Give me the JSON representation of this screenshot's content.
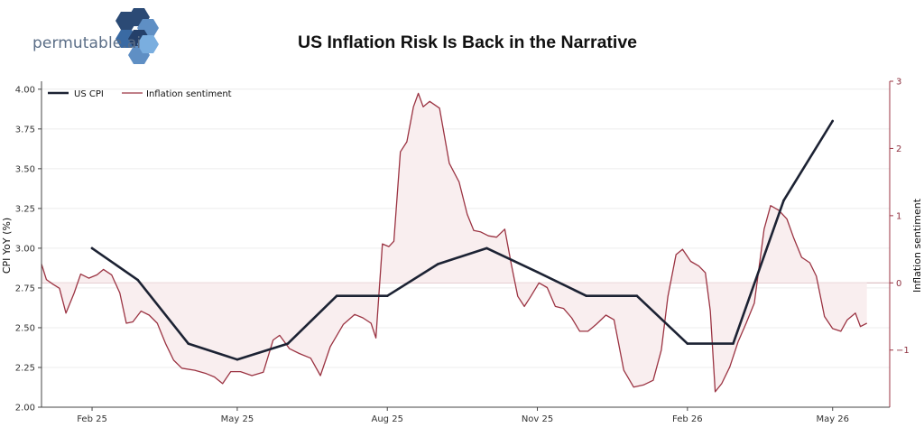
{
  "logo": {
    "text": "permutable.ai"
  },
  "chart_data": {
    "type": "line",
    "title": "US Inflation Risk Is Back in the Narrative",
    "ylabel": "CPI YoY (%)",
    "y2label": "Inflation sentiment",
    "ylim": [
      2.0,
      4.05
    ],
    "y2lim": [
      -1.85,
      3.0
    ],
    "xlim": [
      "2025-01-01",
      "2026-06-05"
    ],
    "yticks": [
      "2.00",
      "2.25",
      "2.50",
      "2.75",
      "3.00",
      "3.25",
      "3.50",
      "3.75",
      "4.00"
    ],
    "y2ticks": [
      "−1",
      "0",
      "1",
      "2",
      "3"
    ],
    "xticks": [
      {
        "date": "2025-02-01",
        "label": "Feb 25"
      },
      {
        "date": "2025-05-01",
        "label": "May 25"
      },
      {
        "date": "2025-08-01",
        "label": "Aug 25"
      },
      {
        "date": "2025-11-01",
        "label": "Nov 25"
      },
      {
        "date": "2026-02-01",
        "label": "Feb 26"
      },
      {
        "date": "2026-05-01",
        "label": "May 26"
      }
    ],
    "grid": true,
    "legend_position": "top-left",
    "series": [
      {
        "name": "US CPI",
        "axis": "left",
        "color": "#1c2233",
        "points": [
          [
            "2025-02-01",
            3.0
          ],
          [
            "2025-03-01",
            2.8
          ],
          [
            "2025-04-01",
            2.4
          ],
          [
            "2025-05-01",
            2.3
          ],
          [
            "2025-06-01",
            2.4
          ],
          [
            "2025-07-01",
            2.7
          ],
          [
            "2025-08-01",
            2.7
          ],
          [
            "2025-09-01",
            2.9
          ],
          [
            "2025-10-01",
            3.0
          ],
          [
            "2025-11-01",
            2.85
          ],
          [
            "2025-12-01",
            2.7
          ],
          [
            "2026-01-01",
            2.7
          ],
          [
            "2026-02-01",
            2.4
          ],
          [
            "2026-03-01",
            2.4
          ],
          [
            "2026-04-01",
            3.3
          ],
          [
            "2026-05-01",
            3.8
          ]
        ]
      },
      {
        "name": "Inflation sentiment",
        "axis": "right",
        "color": "#9b3342",
        "fill_color": "#f9eeef",
        "points": [
          [
            "2025-01-01",
            0.28
          ],
          [
            "2025-01-04",
            0.05
          ],
          [
            "2025-01-08",
            -0.02
          ],
          [
            "2025-01-12",
            -0.08
          ],
          [
            "2025-01-16",
            -0.45
          ],
          [
            "2025-01-21",
            -0.15
          ],
          [
            "2025-01-25",
            0.13
          ],
          [
            "2025-01-30",
            0.07
          ],
          [
            "2025-02-04",
            0.12
          ],
          [
            "2025-02-08",
            0.2
          ],
          [
            "2025-02-13",
            0.12
          ],
          [
            "2025-02-18",
            -0.15
          ],
          [
            "2025-02-22",
            -0.6
          ],
          [
            "2025-02-26",
            -0.58
          ],
          [
            "2025-03-03",
            -0.42
          ],
          [
            "2025-03-08",
            -0.48
          ],
          [
            "2025-03-13",
            -0.6
          ],
          [
            "2025-03-18",
            -0.9
          ],
          [
            "2025-03-23",
            -1.15
          ],
          [
            "2025-03-28",
            -1.27
          ],
          [
            "2025-04-05",
            -1.3
          ],
          [
            "2025-04-12",
            -1.35
          ],
          [
            "2025-04-17",
            -1.4
          ],
          [
            "2025-04-22",
            -1.5
          ],
          [
            "2025-04-27",
            -1.32
          ],
          [
            "2025-05-03",
            -1.32
          ],
          [
            "2025-05-10",
            -1.38
          ],
          [
            "2025-05-17",
            -1.33
          ],
          [
            "2025-05-23",
            -0.85
          ],
          [
            "2025-05-27",
            -0.78
          ],
          [
            "2025-06-02",
            -0.98
          ],
          [
            "2025-06-08",
            -1.05
          ],
          [
            "2025-06-15",
            -1.12
          ],
          [
            "2025-06-21",
            -1.38
          ],
          [
            "2025-06-27",
            -0.95
          ],
          [
            "2025-07-05",
            -0.62
          ],
          [
            "2025-07-12",
            -0.47
          ],
          [
            "2025-07-17",
            -0.52
          ],
          [
            "2025-07-22",
            -0.6
          ],
          [
            "2025-07-25",
            -0.82
          ],
          [
            "2025-07-29",
            0.58
          ],
          [
            "2025-08-02",
            0.54
          ],
          [
            "2025-08-05",
            0.62
          ],
          [
            "2025-08-09",
            1.95
          ],
          [
            "2025-08-13",
            2.1
          ],
          [
            "2025-08-17",
            2.62
          ],
          [
            "2025-08-20",
            2.82
          ],
          [
            "2025-08-23",
            2.62
          ],
          [
            "2025-08-27",
            2.7
          ],
          [
            "2025-09-02",
            2.6
          ],
          [
            "2025-09-08",
            1.78
          ],
          [
            "2025-09-14",
            1.5
          ],
          [
            "2025-09-19",
            1.02
          ],
          [
            "2025-09-23",
            0.78
          ],
          [
            "2025-09-27",
            0.76
          ],
          [
            "2025-10-02",
            0.7
          ],
          [
            "2025-10-07",
            0.68
          ],
          [
            "2025-10-12",
            0.8
          ],
          [
            "2025-10-16",
            0.28
          ],
          [
            "2025-10-20",
            -0.2
          ],
          [
            "2025-10-24",
            -0.35
          ],
          [
            "2025-10-28",
            -0.2
          ],
          [
            "2025-11-02",
            0.0
          ],
          [
            "2025-11-07",
            -0.07
          ],
          [
            "2025-11-12",
            -0.35
          ],
          [
            "2025-11-17",
            -0.38
          ],
          [
            "2025-11-22",
            -0.52
          ],
          [
            "2025-11-27",
            -0.72
          ],
          [
            "2025-12-02",
            -0.72
          ],
          [
            "2025-12-07",
            -0.62
          ],
          [
            "2025-12-13",
            -0.48
          ],
          [
            "2025-12-18",
            -0.55
          ],
          [
            "2025-12-24",
            -1.3
          ],
          [
            "2025-12-30",
            -1.55
          ],
          [
            "2026-01-05",
            -1.52
          ],
          [
            "2026-01-11",
            -1.45
          ],
          [
            "2026-01-16",
            -1.0
          ],
          [
            "2026-01-20",
            -0.2
          ],
          [
            "2026-01-25",
            0.42
          ],
          [
            "2026-01-29",
            0.5
          ],
          [
            "2026-02-03",
            0.32
          ],
          [
            "2026-02-08",
            0.25
          ],
          [
            "2026-02-12",
            0.15
          ],
          [
            "2026-02-15",
            -0.42
          ],
          [
            "2026-02-18",
            -1.62
          ],
          [
            "2026-02-22",
            -1.5
          ],
          [
            "2026-02-27",
            -1.25
          ],
          [
            "2026-03-04",
            -0.88
          ],
          [
            "2026-03-09",
            -0.6
          ],
          [
            "2026-03-14",
            -0.3
          ],
          [
            "2026-03-20",
            0.8
          ],
          [
            "2026-03-24",
            1.15
          ],
          [
            "2026-03-29",
            1.08
          ],
          [
            "2026-04-03",
            0.95
          ],
          [
            "2026-04-07",
            0.68
          ],
          [
            "2026-04-12",
            0.38
          ],
          [
            "2026-04-17",
            0.3
          ],
          [
            "2026-04-21",
            0.1
          ],
          [
            "2026-04-26",
            -0.5
          ],
          [
            "2026-05-01",
            -0.68
          ],
          [
            "2026-05-06",
            -0.72
          ],
          [
            "2026-05-10",
            -0.55
          ],
          [
            "2026-05-15",
            -0.45
          ],
          [
            "2026-05-18",
            -0.65
          ],
          [
            "2026-05-22",
            -0.6
          ]
        ]
      }
    ]
  }
}
